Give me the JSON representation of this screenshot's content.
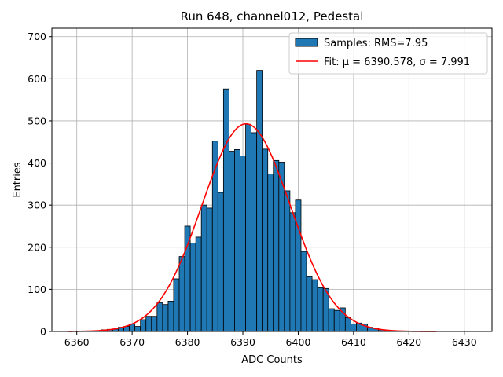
{
  "chart_data": {
    "type": "bar",
    "title": "Run 648, channel012, Pedestal",
    "xlabel": "ADC Counts",
    "ylabel": "Entries",
    "xlim": [
      6355.5,
      6435.0
    ],
    "ylim": [
      0,
      720
    ],
    "xticks": [
      6360,
      6370,
      6380,
      6390,
      6400,
      6410,
      6420,
      6430
    ],
    "yticks": [
      0,
      100,
      200,
      300,
      400,
      500,
      600,
      700
    ],
    "grid": true,
    "legend_position": "top-right",
    "colors": {
      "bars": "#1f77b4",
      "fit": "#ff0000",
      "edge": "#000000",
      "grid": "#b0b0b0"
    },
    "histogram": {
      "name": "Samples: RMS=7.95",
      "bins": [
        {
          "x": 6363,
          "y": 1
        },
        {
          "x": 6364,
          "y": 2
        },
        {
          "x": 6365,
          "y": 4
        },
        {
          "x": 6366,
          "y": 5
        },
        {
          "x": 6367,
          "y": 6
        },
        {
          "x": 6368,
          "y": 10
        },
        {
          "x": 6369,
          "y": 12
        },
        {
          "x": 6370,
          "y": 18
        },
        {
          "x": 6371,
          "y": 12
        },
        {
          "x": 6372,
          "y": 28
        },
        {
          "x": 6373,
          "y": 36
        },
        {
          "x": 6374,
          "y": 36
        },
        {
          "x": 6375,
          "y": 68
        },
        {
          "x": 6376,
          "y": 64
        },
        {
          "x": 6377,
          "y": 72
        },
        {
          "x": 6378,
          "y": 125
        },
        {
          "x": 6379,
          "y": 178
        },
        {
          "x": 6380,
          "y": 250
        },
        {
          "x": 6381,
          "y": 210
        },
        {
          "x": 6382,
          "y": 224
        },
        {
          "x": 6383,
          "y": 300
        },
        {
          "x": 6384,
          "y": 293
        },
        {
          "x": 6385,
          "y": 452
        },
        {
          "x": 6386,
          "y": 330
        },
        {
          "x": 6387,
          "y": 576
        },
        {
          "x": 6388,
          "y": 428
        },
        {
          "x": 6389,
          "y": 432
        },
        {
          "x": 6390,
          "y": 417
        },
        {
          "x": 6391,
          "y": 492
        },
        {
          "x": 6392,
          "y": 472
        },
        {
          "x": 6393,
          "y": 620
        },
        {
          "x": 6394,
          "y": 433
        },
        {
          "x": 6395,
          "y": 374
        },
        {
          "x": 6396,
          "y": 406
        },
        {
          "x": 6397,
          "y": 402
        },
        {
          "x": 6398,
          "y": 334
        },
        {
          "x": 6399,
          "y": 282
        },
        {
          "x": 6400,
          "y": 312
        },
        {
          "x": 6401,
          "y": 190
        },
        {
          "x": 6402,
          "y": 130
        },
        {
          "x": 6403,
          "y": 123
        },
        {
          "x": 6404,
          "y": 104
        },
        {
          "x": 6405,
          "y": 102
        },
        {
          "x": 6406,
          "y": 54
        },
        {
          "x": 6407,
          "y": 50
        },
        {
          "x": 6408,
          "y": 56
        },
        {
          "x": 6409,
          "y": 33
        },
        {
          "x": 6410,
          "y": 18
        },
        {
          "x": 6411,
          "y": 20
        },
        {
          "x": 6412,
          "y": 18
        },
        {
          "x": 6413,
          "y": 10
        },
        {
          "x": 6414,
          "y": 7
        },
        {
          "x": 6415,
          "y": 4
        },
        {
          "x": 6416,
          "y": 3
        },
        {
          "x": 6417,
          "y": 2
        },
        {
          "x": 6418,
          "y": 1
        },
        {
          "x": 6419,
          "y": 1
        },
        {
          "x": 6420,
          "y": 1
        }
      ]
    },
    "fit": {
      "name": "Fit: μ = 6390.578, σ = 7.991",
      "type": "gaussian",
      "mu": 6390.578,
      "sigma": 7.991,
      "amplitude": 493,
      "x_range": [
        6358.5,
        6425.0
      ]
    }
  }
}
